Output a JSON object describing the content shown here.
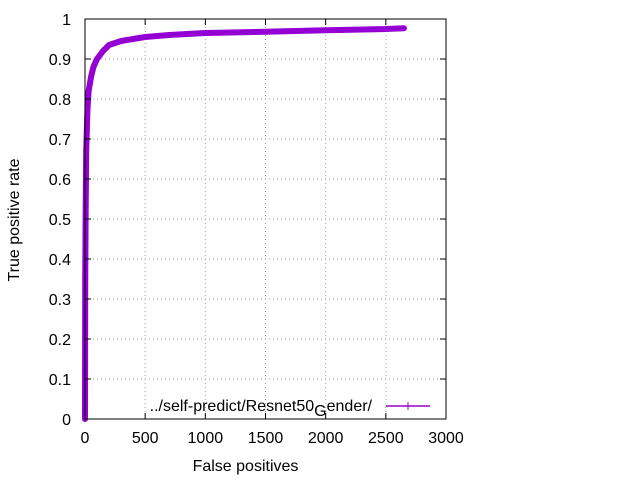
{
  "chart_data": {
    "type": "line",
    "title": "",
    "xlabel": "False positives",
    "ylabel": "True positive rate",
    "xlim": [
      0,
      3000
    ],
    "ylim": [
      0,
      1
    ],
    "xticks": [
      0,
      500,
      1000,
      1500,
      2000,
      2500,
      3000
    ],
    "yticks": [
      0,
      0.1,
      0.2,
      0.3,
      0.4,
      0.5,
      0.6,
      0.7,
      0.8,
      0.9,
      1
    ],
    "xtick_labels": [
      "0",
      "500",
      "1000",
      "1500",
      "2000",
      "2500",
      "3000"
    ],
    "ytick_labels": [
      "0",
      "0.1",
      "0.2",
      "0.3",
      "0.4",
      "0.5",
      "0.6",
      "0.7",
      "0.8",
      "0.9",
      "1"
    ],
    "grid": true,
    "legend_position": "bottom-right",
    "series": [
      {
        "name": "../self-predict/Resnet50_Gender/",
        "legend_main": "../self-predict/Resnet50",
        "legend_sub": "G",
        "legend_tail": "ender/",
        "color": "#9400d3",
        "x": [
          0,
          2,
          5,
          10,
          20,
          30,
          50,
          70,
          100,
          150,
          200,
          250,
          300,
          400,
          500,
          700,
          1000,
          1500,
          2000,
          2500,
          2650
        ],
        "y": [
          0,
          0.35,
          0.5,
          0.67,
          0.77,
          0.82,
          0.855,
          0.88,
          0.9,
          0.92,
          0.935,
          0.94,
          0.945,
          0.95,
          0.955,
          0.96,
          0.965,
          0.968,
          0.972,
          0.975,
          0.977
        ]
      }
    ]
  }
}
